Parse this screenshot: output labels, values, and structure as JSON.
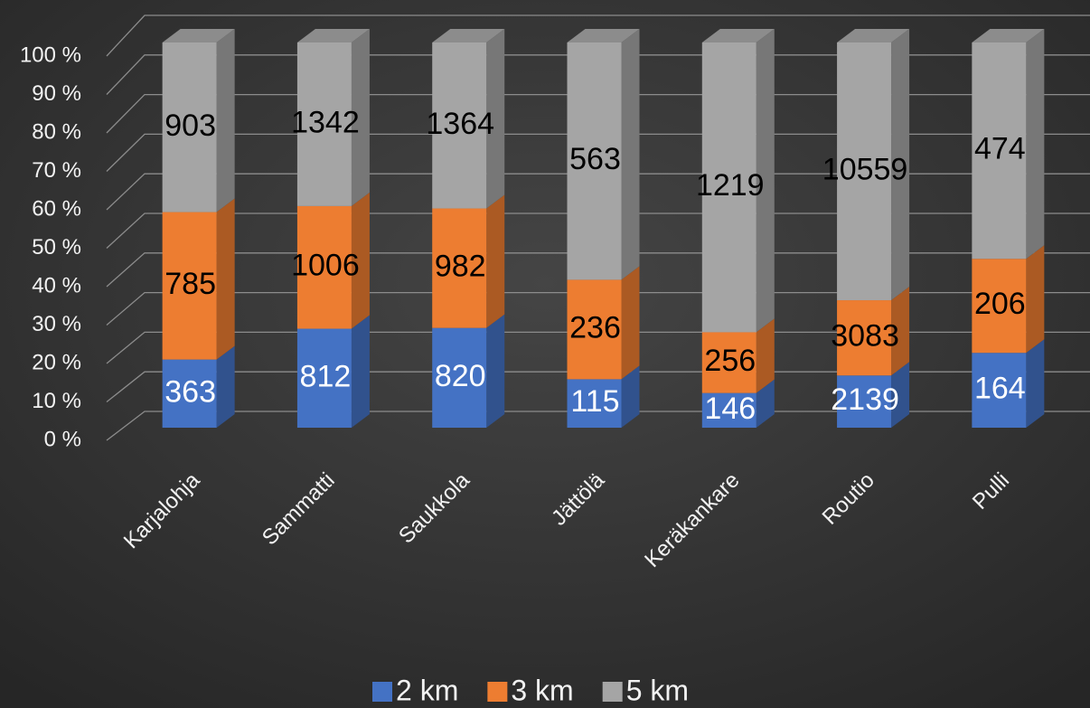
{
  "chart_data": {
    "type": "bar3d_stacked_percent",
    "categories": [
      "Karjalohja",
      "Sammatti",
      "Saukkola",
      "Jättölä",
      "Keräkankare",
      "Routio",
      "Pulli"
    ],
    "series": [
      {
        "name": "2 km",
        "color": "#4472c4",
        "values": [
          363,
          812,
          820,
          115,
          146,
          2139,
          164
        ]
      },
      {
        "name": "3 km",
        "color": "#ed7d31",
        "values": [
          785,
          1006,
          982,
          236,
          256,
          3083,
          206
        ]
      },
      {
        "name": "5 km",
        "color": "#a5a5a5",
        "values": [
          903,
          1342,
          1364,
          563,
          1219,
          10559,
          474
        ]
      }
    ],
    "ylim": [
      0,
      100
    ],
    "yticks": [
      {
        "value": 0,
        "label": "0 %"
      },
      {
        "value": 10,
        "label": "10 %"
      },
      {
        "value": 20,
        "label": "20 %"
      },
      {
        "value": 30,
        "label": "30 %"
      },
      {
        "value": 40,
        "label": "40 %"
      },
      {
        "value": 50,
        "label": "50 %"
      },
      {
        "value": 60,
        "label": "60 %"
      },
      {
        "value": 70,
        "label": "70 %"
      },
      {
        "value": 80,
        "label": "80 %"
      },
      {
        "value": 90,
        "label": "90 %"
      },
      {
        "value": 100,
        "label": "100 %"
      }
    ],
    "grid": true,
    "legend": "bottom"
  }
}
